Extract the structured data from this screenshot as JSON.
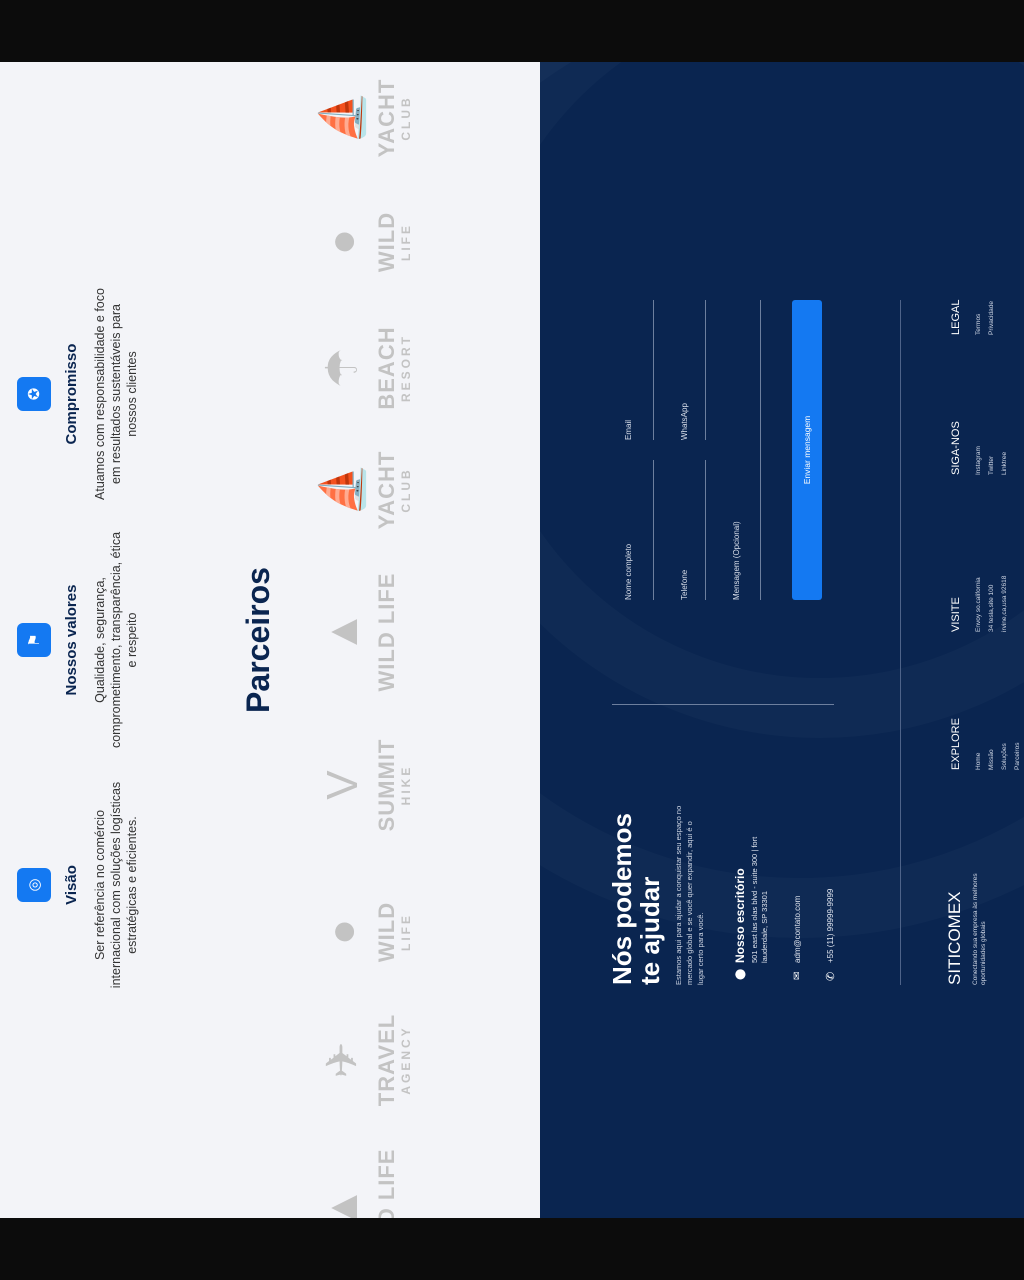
{
  "values": [
    {
      "icon": "eye-icon",
      "title": "Visão",
      "text": "Ser referência no comércio internacional com soluções logísticas estratégicas e eficientes."
    },
    {
      "icon": "flag-icon",
      "title": "Nossos valores",
      "text": "Qualidade, segurança, comprometimento, transparência, ética e respeito"
    },
    {
      "icon": "award-icon",
      "title": "Compromisso",
      "text": "Atuamos com responsabilidade e foco em resultados sustentáveis para nossos clientes"
    }
  ],
  "partners": {
    "title": "Parceiros",
    "logos": [
      {
        "name": "WILD LIFE",
        "sub": ""
      },
      {
        "name": "TRAVEL",
        "sub": "AGENCY"
      },
      {
        "name": "WILD",
        "sub": "LIFE"
      },
      {
        "name": "SUMMIT",
        "sub": "HIKE"
      },
      {
        "name": "WILD LIFE",
        "sub": ""
      },
      {
        "name": "YACHT",
        "sub": "CLUB"
      },
      {
        "name": "BEACH",
        "sub": "RESORT"
      },
      {
        "name": "WILD",
        "sub": "LIFE"
      },
      {
        "name": "YACHT",
        "sub": "CLUB"
      }
    ]
  },
  "contact": {
    "title_line1": "Nós podemos",
    "title_line2": "te ajudar",
    "intro": "Estamos aqui para ajudar a conquistar seu espaço no mercado global e se você quer expandir, aqui é o lugar certo para você.",
    "office_title": "Nosso escritório",
    "office_address": "501 east las olas blvd - suite 300 | fort lauderdale, SP 33301",
    "email": "adm@contato.com",
    "phone": "+55 (11) 99999-9999"
  },
  "form": {
    "name": "Nome completo",
    "email": "Email",
    "phone": "Telefone",
    "whatsapp": "WhatsApp",
    "message": "Mensagem (Opcional)",
    "submit": "Enviar mensagem",
    "accent": "#1479f2"
  },
  "footer": {
    "brand": "SITICOMEX",
    "tagline": "Conectando sua empresa às melhores oportunidades globais",
    "columns": [
      {
        "title": "EXPLORE",
        "items": [
          "Home",
          "Missão",
          "Soluções",
          "Parceiros"
        ]
      },
      {
        "title": "VISITE",
        "items": [
          "Envoy so.california",
          "34 tesla,site 100",
          "irvine,ca,usa 92618"
        ]
      },
      {
        "title": "SIGA-NOS",
        "items": [
          "Instagram",
          "Twitter",
          "Linktree"
        ]
      },
      {
        "title": "LEGAL",
        "items": [
          "Termos",
          "Privacidade"
        ]
      }
    ]
  }
}
